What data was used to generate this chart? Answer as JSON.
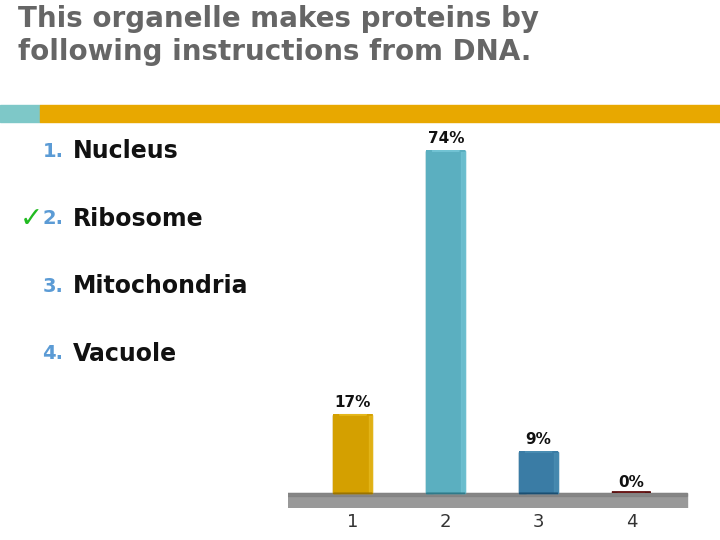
{
  "title_line1": "This organelle makes proteins by",
  "title_line2": "following instructions from DNA.",
  "title_color": "#666666",
  "header_bar_color_left": "#7ec8c8",
  "header_bar_color_right": "#e8a800",
  "list_items": [
    "Nucleus",
    "Ribosome",
    "Mitochondria",
    "Vacuole"
  ],
  "list_numbers": [
    "1.",
    "2.",
    "3.",
    "4."
  ],
  "number_color": "#5b9bd5",
  "text_color": "#111111",
  "checkmark_item": 1,
  "checkmark_color": "#22bb22",
  "bar_values": [
    17,
    74,
    9,
    0
  ],
  "bar_labels": [
    "17%",
    "74%",
    "9%",
    "0%"
  ],
  "bar_colors": [
    "#d4a000",
    "#5bafc0",
    "#3a7ca5",
    "#5a1010"
  ],
  "bar_colors_dark": [
    "#9a7300",
    "#2e7a8a",
    "#1a4f73",
    "#3a0a0a"
  ],
  "bar_colors_light": [
    "#f0c830",
    "#80d0e0",
    "#5599bb",
    "#7a2020"
  ],
  "x_labels": [
    "1",
    "2",
    "3",
    "4"
  ],
  "background_color": "#ffffff",
  "floor_color": "#999999",
  "floor_color_dark": "#777777"
}
